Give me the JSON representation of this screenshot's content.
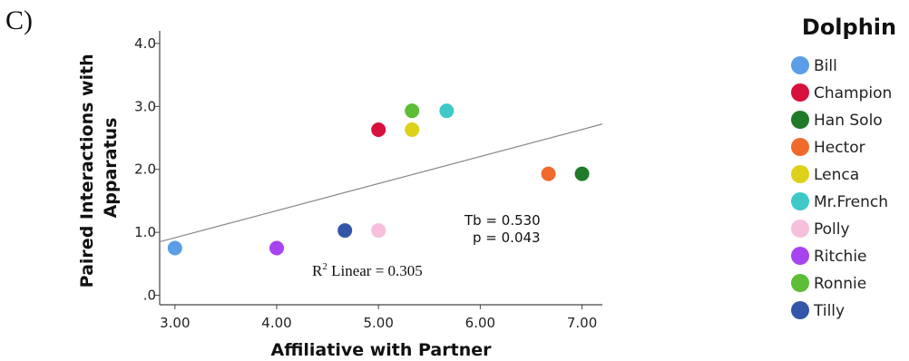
{
  "panel_label": "C)",
  "chart_data": {
    "type": "scatter",
    "xlabel": "Affiliative with Partner",
    "ylabel_lines": [
      "Paired Interactions with",
      "Apparatus"
    ],
    "xlim": [
      2.85,
      7.2
    ],
    "ylim": [
      -0.15,
      4.2
    ],
    "x_ticks": [
      3.0,
      4.0,
      5.0,
      6.0,
      7.0
    ],
    "x_tick_labels": [
      "3.00",
      "4.00",
      "5.00",
      "6.00",
      "7.00"
    ],
    "y_ticks": [
      0,
      1,
      2,
      3,
      4
    ],
    "y_tick_labels": [
      ".0",
      "1.0",
      "2.0",
      "3.0",
      "4.0"
    ],
    "grid": false,
    "legend_title": "Dolphin",
    "legend_position": "right",
    "series": [
      {
        "name": "Bill",
        "color": "#5b9ee8",
        "points": [
          {
            "x": 3.0,
            "y": 0.75
          }
        ]
      },
      {
        "name": "Champion",
        "color": "#d8103c",
        "points": [
          {
            "x": 5.0,
            "y": 2.63
          }
        ]
      },
      {
        "name": "Han Solo",
        "color": "#1f7a2a",
        "points": [
          {
            "x": 7.0,
            "y": 1.93
          }
        ]
      },
      {
        "name": "Hector",
        "color": "#f06a2c",
        "points": [
          {
            "x": 6.67,
            "y": 1.93
          }
        ]
      },
      {
        "name": "Lenca",
        "color": "#ddd11a",
        "points": [
          {
            "x": 5.33,
            "y": 2.63
          }
        ]
      },
      {
        "name": "Mr.French",
        "color": "#3ec8c8",
        "points": [
          {
            "x": 5.67,
            "y": 2.93
          }
        ]
      },
      {
        "name": "Polly",
        "color": "#f8bfdc",
        "points": [
          {
            "x": 5.0,
            "y": 1.03
          }
        ]
      },
      {
        "name": "Ritchie",
        "color": "#a844ef",
        "points": [
          {
            "x": 4.0,
            "y": 0.75
          }
        ]
      },
      {
        "name": "Ronnie",
        "color": "#5dbd37",
        "points": [
          {
            "x": 5.33,
            "y": 2.93
          }
        ]
      },
      {
        "name": "Tilly",
        "color": "#3456a8",
        "points": [
          {
            "x": 4.67,
            "y": 1.03
          }
        ]
      }
    ],
    "fit_line": {
      "x": [
        2.85,
        7.2
      ],
      "y": [
        0.85,
        2.72
      ],
      "color": "#888888"
    },
    "annotations": {
      "tb": "Tb = 0.530",
      "p": "p = 0.043",
      "r2_prefix": "R",
      "r2_sup": "2",
      "r2_suffix": " Linear = 0.305"
    }
  }
}
